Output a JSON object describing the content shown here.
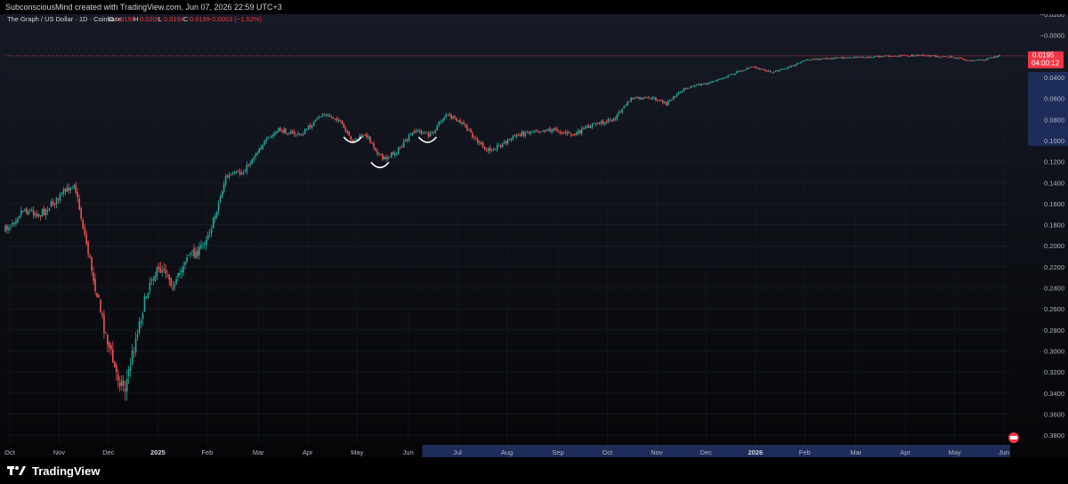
{
  "header": {
    "creator_line": "SubconsciousMind created with TradingView.com, Jun 07, 2026 22:59 UTC+3"
  },
  "legend": {
    "symbol": "The Graph / US Dollar · 1D · Coinbase",
    "o_label": "O",
    "o_value": "0.0198",
    "h_label": "H",
    "h_value": "0.0206",
    "l_label": "L",
    "l_value": "0.0194",
    "c_label": "C",
    "c_value": "0.0195",
    "change": "−0.0003 (−1.52%)"
  },
  "price_badge": {
    "price": "0.0195",
    "countdown": "04:00:12"
  },
  "footer": {
    "brand": "TradingView"
  },
  "colors": {
    "up": "#26a69a",
    "down": "#ef5350",
    "badge": "#f23645",
    "axis_highlight": "#1e2c5a",
    "text": "#b2b5be"
  },
  "chart_data": {
    "type": "candlestick",
    "title": "The Graph / US Dollar · 1D · Coinbase",
    "y_axis": {
      "inverted": true,
      "range": [
        -0.02,
        0.39
      ],
      "tick_labels": [
        "−0.0200",
        "−0.0000",
        "0.0400",
        "0.0600",
        "0.0800",
        "0.1000",
        "0.1200",
        "0.1400",
        "0.1600",
        "0.1800",
        "0.2000",
        "0.2200",
        "0.2400",
        "0.2600",
        "0.2800",
        "0.3000",
        "0.3200",
        "0.3400",
        "0.3600",
        "0.3800"
      ],
      "tick_values": [
        -0.02,
        0,
        0.04,
        0.06,
        0.08,
        0.1,
        0.12,
        0.14,
        0.16,
        0.18,
        0.2,
        0.22,
        0.24,
        0.26,
        0.28,
        0.3,
        0.32,
        0.34,
        0.36,
        0.38
      ],
      "highlight_range": [
        0.04,
        0.1
      ]
    },
    "x_axis": {
      "tick_labels": [
        "Oct",
        "Nov",
        "Dec",
        "2025",
        "Feb",
        "Mar",
        "Apr",
        "May",
        "Jun",
        "Jul",
        "Aug",
        "Sep",
        "Oct",
        "Nov",
        "Dec",
        "2026",
        "Feb",
        "Mar",
        "Apr",
        "May",
        "Jun"
      ],
      "tick_index": [
        5,
        61,
        117,
        173,
        229,
        287,
        343,
        399,
        457,
        513,
        569,
        627,
        683,
        739,
        795,
        851,
        907,
        965,
        1021,
        1077,
        1133
      ],
      "highlight_start_index": 473
    },
    "close_series": [
      [
        0,
        0.185
      ],
      [
        20,
        0.165
      ],
      [
        40,
        0.17
      ],
      [
        60,
        0.155
      ],
      [
        78,
        0.14
      ],
      [
        95,
        0.21
      ],
      [
        110,
        0.27
      ],
      [
        125,
        0.32
      ],
      [
        136,
        0.335
      ],
      [
        150,
        0.28
      ],
      [
        165,
        0.23
      ],
      [
        180,
        0.22
      ],
      [
        192,
        0.24
      ],
      [
        205,
        0.21
      ],
      [
        220,
        0.205
      ],
      [
        235,
        0.18
      ],
      [
        250,
        0.135
      ],
      [
        270,
        0.13
      ],
      [
        290,
        0.105
      ],
      [
        310,
        0.09
      ],
      [
        335,
        0.095
      ],
      [
        360,
        0.075
      ],
      [
        378,
        0.08
      ],
      [
        392,
        0.1
      ],
      [
        410,
        0.095
      ],
      [
        428,
        0.118
      ],
      [
        445,
        0.11
      ],
      [
        465,
        0.09
      ],
      [
        482,
        0.095
      ],
      [
        500,
        0.075
      ],
      [
        520,
        0.085
      ],
      [
        545,
        0.11
      ],
      [
        560,
        0.105
      ],
      [
        580,
        0.095
      ],
      [
        600,
        0.09
      ],
      [
        625,
        0.09
      ],
      [
        645,
        0.095
      ],
      [
        665,
        0.085
      ],
      [
        690,
        0.08
      ],
      [
        710,
        0.06
      ],
      [
        735,
        0.06
      ],
      [
        750,
        0.065
      ],
      [
        770,
        0.05
      ],
      [
        800,
        0.045
      ],
      [
        830,
        0.035
      ],
      [
        848,
        0.03
      ],
      [
        870,
        0.035
      ],
      [
        890,
        0.03
      ],
      [
        910,
        0.023
      ],
      [
        935,
        0.022
      ],
      [
        965,
        0.021
      ],
      [
        1000,
        0.02
      ],
      [
        1040,
        0.019
      ],
      [
        1075,
        0.021
      ],
      [
        1095,
        0.024
      ],
      [
        1112,
        0.023
      ],
      [
        1128,
        0.0195
      ]
    ],
    "last_close": 0.0195,
    "annotations": [
      {
        "type": "arc",
        "index": 394,
        "value": 0.1
      },
      {
        "type": "arc",
        "index": 425,
        "value": 0.124
      },
      {
        "type": "arc",
        "index": 479,
        "value": 0.1
      }
    ]
  }
}
